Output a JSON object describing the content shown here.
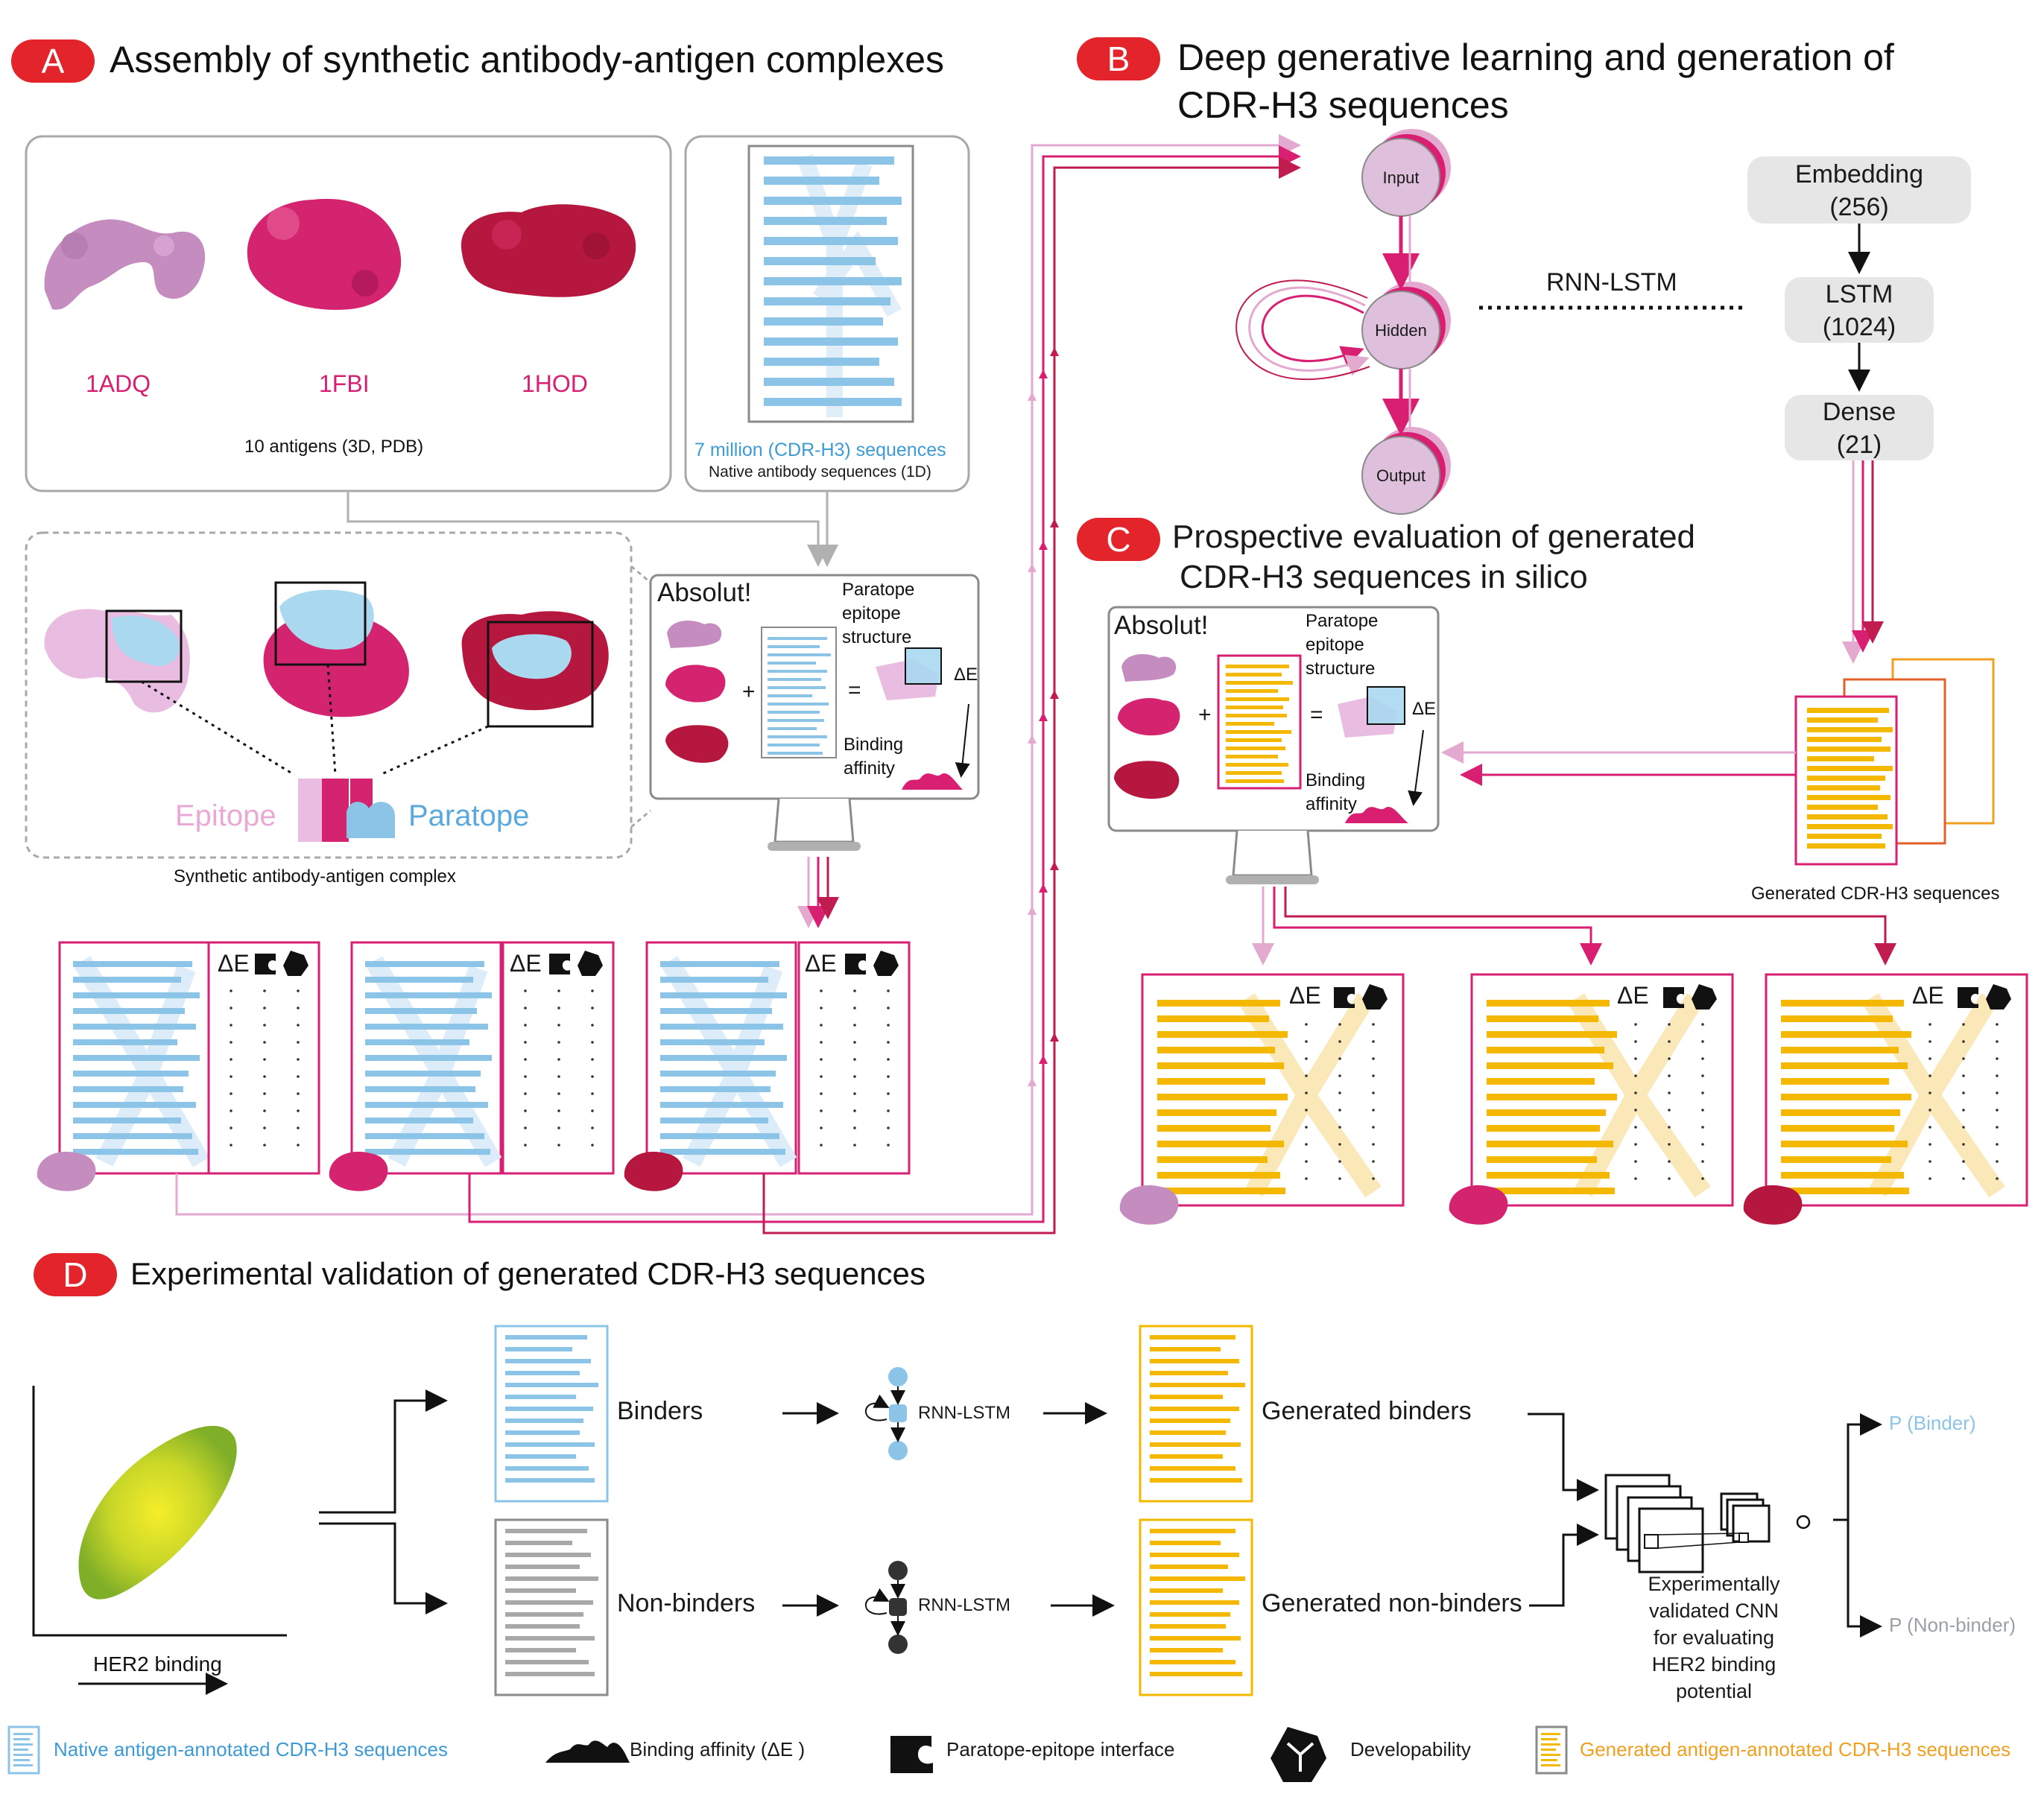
{
  "panels": {
    "A": {
      "letter": "A",
      "title": "Assembly of synthetic antibody-antigen complexes"
    },
    "B": {
      "letter": "B",
      "title_line1": "Deep generative learning and generation of",
      "title_line2": "CDR-H3 sequences"
    },
    "C": {
      "letter": "C",
      "title_line1": "Prospective evaluation of generated",
      "title_line2": "CDR-H3 sequences in silico"
    },
    "D": {
      "letter": "D",
      "title": "Experimental validation of generated CDR-H3 sequences"
    }
  },
  "antigens": {
    "names": [
      "1ADQ",
      "1FBI",
      "1HOD"
    ],
    "caption": "10 antigens (3D, PDB)"
  },
  "native_box": {
    "count_label": "7 million (CDR-H3) sequences",
    "caption": "Native antibody sequences (1D)"
  },
  "complex": {
    "epitope": "Epitope",
    "paratope": "Paratope",
    "caption": "Synthetic antibody-antigen complex"
  },
  "absolut": {
    "title": "Absolut!",
    "plus": "+",
    "equals": "=",
    "structure_l1": "Paratope",
    "structure_l2": "epitope",
    "structure_l3": "structure",
    "delta_e": "ΔE",
    "affinity_l1": "Binding",
    "affinity_l2": "affinity"
  },
  "table_header": "ΔE",
  "network": {
    "input": "Input",
    "hidden": "Hidden",
    "output": "Output",
    "rnn_label": "RNN-LSTM",
    "layers": [
      {
        "name": "Embedding",
        "size": "(256)"
      },
      {
        "name": "LSTM",
        "size": "(1024)"
      },
      {
        "name": "Dense",
        "size": "(21)"
      }
    ]
  },
  "generated_caption": "Generated CDR-H3 sequences",
  "panel_d": {
    "axis_label": "HER2 binding",
    "binders": "Binders",
    "non_binders": "Non-binders",
    "rnn": "RNN-LSTM",
    "gen_binders": "Generated binders",
    "gen_non_binders": "Generated non-binders",
    "cnn_l1": "Experimentally",
    "cnn_l2": "validated CNN",
    "cnn_l3": "for evaluating",
    "cnn_l4": "HER2 binding",
    "cnn_l5": "potential",
    "p_binder": "P (Binder)",
    "p_non_binder": "P (Non-binder)"
  },
  "legend": [
    {
      "icon": "native-sequences-icon",
      "label": "Native antigen-annotated CDR-H3 sequences"
    },
    {
      "icon": "binding-affinity-icon",
      "label": "Binding affinity (ΔE )"
    },
    {
      "icon": "paratope-epitope-interface-icon",
      "label": "Paratope-epitope interface"
    },
    {
      "icon": "developability-icon",
      "label": "Developability"
    },
    {
      "icon": "generated-sequences-icon",
      "label": "Generated antigen-annotated CDR-H3 sequences"
    }
  ],
  "colors": {
    "accent_red": "#e3252b",
    "light_pink": "#e8b4d6",
    "magenta": "#d81f72",
    "crimson": "#b5174a",
    "native_blue": "#8cc4e8",
    "generated_yellow": "#f5b800",
    "node_fill": "#dfc0dc"
  }
}
